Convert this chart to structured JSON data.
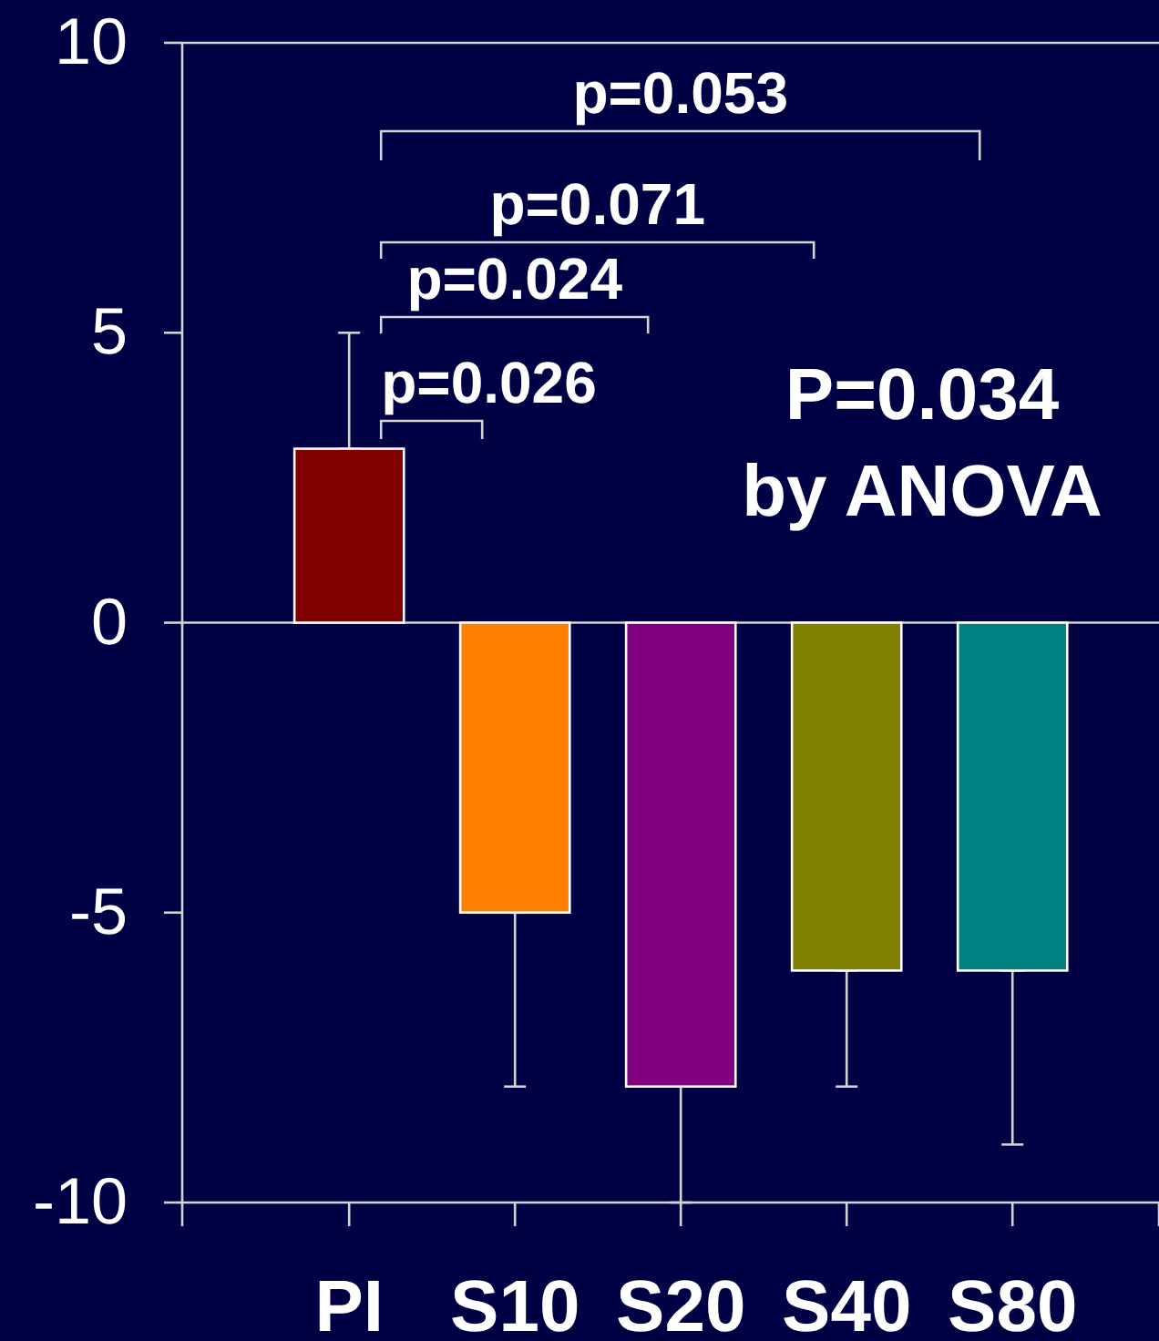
{
  "chart_data": {
    "type": "bar",
    "categories": [
      "PI",
      "S10",
      "S20",
      "S40",
      "S80"
    ],
    "values": [
      3,
      -5,
      -8,
      -6,
      -6
    ],
    "colors": [
      "#800000",
      "#ff8000",
      "#800080",
      "#808000",
      "#008080"
    ],
    "errors": [
      [
        3,
        5
      ],
      [
        -8,
        -5
      ],
      [
        -10,
        -8
      ],
      [
        -8,
        -6
      ],
      [
        -9,
        -6
      ]
    ],
    "ylim": [
      -10,
      10
    ],
    "yticks": [
      -10,
      -5,
      0,
      5,
      10
    ],
    "annotations": [
      "p=0.053",
      "p=0.071",
      "p=0.024",
      "p=0.026",
      "P=0.034",
      "by ANOVA"
    ]
  }
}
